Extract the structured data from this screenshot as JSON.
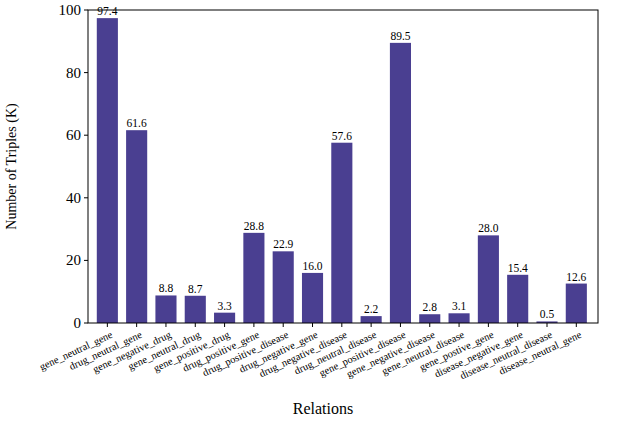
{
  "chart_data": {
    "type": "bar",
    "x_label": "Relations",
    "y_label": "Number of Triples (K)",
    "categories": [
      "gene_neutral_gene",
      "drug_neutral_gene",
      "gene_negative_drug",
      "gene_neutral_drug",
      "gene_positive_drug",
      "drug_positive_gene",
      "drug_positive_disease",
      "drug_negative_gene",
      "drug_negative_disease",
      "drug_neutral_disease",
      "gene_positive_disease",
      "gene_negative_disease",
      "gene_neutral_disease",
      "gene_postive_gene",
      "disease_negative_gene",
      "disease_neutral_disease",
      "disease_neutral_gene"
    ],
    "values": [
      97.4,
      61.6,
      8.8,
      8.7,
      3.3,
      28.8,
      22.9,
      16.0,
      57.6,
      2.2,
      89.5,
      2.8,
      3.1,
      28.0,
      15.4,
      0.5,
      12.6
    ],
    "value_labels": [
      "97.4",
      "61.6",
      "8.8",
      "8.7",
      "3.3",
      "28.8",
      "22.9",
      "16.0",
      "57.6",
      "2.2",
      "89.5",
      "2.8",
      "3.1",
      "28.0",
      "15.4",
      "0.5",
      "12.6"
    ],
    "color": "#4a3f91",
    "ylim": [
      0,
      100
    ],
    "yticks": [
      0,
      20,
      40,
      60,
      80,
      100
    ],
    "grid": false,
    "data_labels": true
  }
}
